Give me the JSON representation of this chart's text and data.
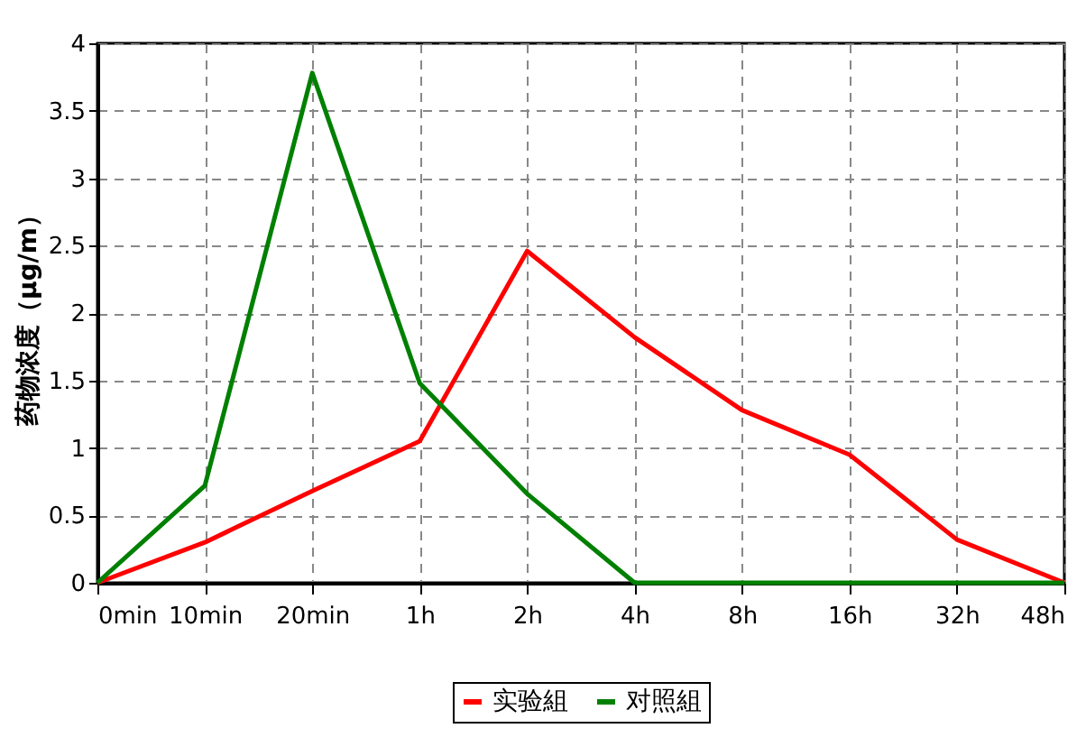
{
  "chart_data": {
    "type": "line",
    "ylabel": "药物浓度（μg/m）",
    "categories": [
      "0min",
      "10min",
      "20min",
      "1h",
      "2h",
      "4h",
      "8h",
      "16h",
      "32h",
      "48h"
    ],
    "series": [
      {
        "name": "实验組",
        "color": "#ff0000",
        "values": [
          0,
          0.3,
          0.68,
          1.05,
          2.46,
          1.82,
          1.28,
          0.95,
          0.32,
          0
        ]
      },
      {
        "name": "对照組",
        "color": "#008000",
        "values": [
          0,
          0.72,
          3.78,
          1.48,
          0.66,
          0,
          0,
          0,
          0,
          0
        ]
      }
    ],
    "ylim": [
      0,
      4
    ],
    "yticks": [
      0,
      0.5,
      1,
      1.5,
      2,
      2.5,
      3,
      3.5,
      4
    ],
    "grid": true,
    "legend": "bottom",
    "line_style": "solid"
  }
}
